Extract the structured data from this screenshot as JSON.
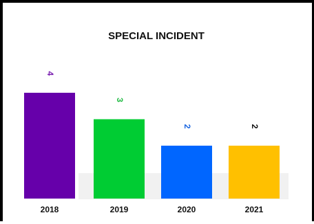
{
  "chart_data": {
    "type": "bar",
    "title": "SPECIAL INCIDENT",
    "xlabel": "",
    "ylabel": "",
    "categories": [
      "2018",
      "2019",
      "2020",
      "2021"
    ],
    "values": [
      4,
      3,
      2,
      2
    ],
    "data_labels": [
      "4",
      "3",
      "2",
      "2"
    ],
    "colors": [
      "#6600aa",
      "#00cc33",
      "#0066ff",
      "#ffc000"
    ],
    "label_colors": [
      "#7a1fb0",
      "#22bb44",
      "#1a66e0",
      "#111111"
    ],
    "ylim": [
      0,
      4
    ],
    "grid": false,
    "legend": "none"
  }
}
